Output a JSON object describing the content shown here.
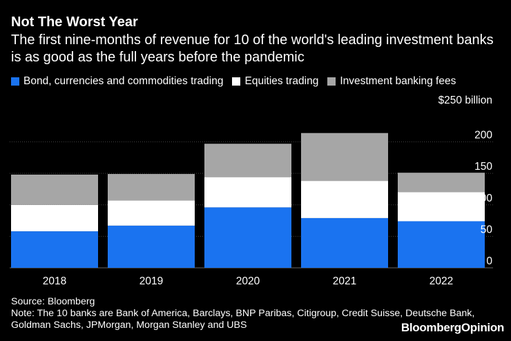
{
  "header": {
    "title": "Not The Worst Year",
    "subtitle": "The first nine-months of revenue for 10 of the world's leading investment banks is as good as the full years before the pandemic"
  },
  "colors": {
    "background": "#000000",
    "bond": "#1a73f0",
    "equities": "#ffffff",
    "ib_fees": "#a6a6a6",
    "grid": "#444444",
    "text": "#ffffff"
  },
  "legend": {
    "items": [
      {
        "label": "Bond, currencies and commodities trading",
        "color": "#1a73f0"
      },
      {
        "label": "Equities trading",
        "color": "#ffffff"
      },
      {
        "label": "Investment banking fees",
        "color": "#a6a6a6"
      }
    ]
  },
  "chart_data": {
    "type": "bar",
    "stacked": true,
    "title": "Not The Worst Year",
    "xlabel": "",
    "ylabel": "$250 billion",
    "categories": [
      "2018",
      "2019",
      "2020",
      "2021",
      "2022"
    ],
    "series": [
      {
        "name": "Bond, currencies and commodities trading",
        "color": "#1a73f0",
        "values": [
          58,
          67,
          96,
          79,
          74
        ]
      },
      {
        "name": "Equities trading",
        "color": "#ffffff",
        "values": [
          42,
          40,
          48,
          59,
          46
        ]
      },
      {
        "name": "Investment banking fees",
        "color": "#a6a6a6",
        "values": [
          48,
          42,
          53,
          76,
          31
        ]
      }
    ],
    "ylim": [
      0,
      250
    ],
    "yticks": [
      0,
      50,
      100,
      150,
      200
    ],
    "ytick_labels": [
      "0",
      "50",
      "100",
      "150",
      "200"
    ],
    "top_label": "$250 billion",
    "grid": true,
    "legend_position": "top"
  },
  "footer": {
    "source": "Source: Bloomberg",
    "note": "Note: The 10 banks are Bank of America, Barclays, BNP Paribas, Citigroup, Credit Suisse, Deutsche Bank, Goldman Sachs, JPMorgan, Morgan Stanley and UBS"
  },
  "brand": {
    "name": "BloombergOpinion"
  }
}
